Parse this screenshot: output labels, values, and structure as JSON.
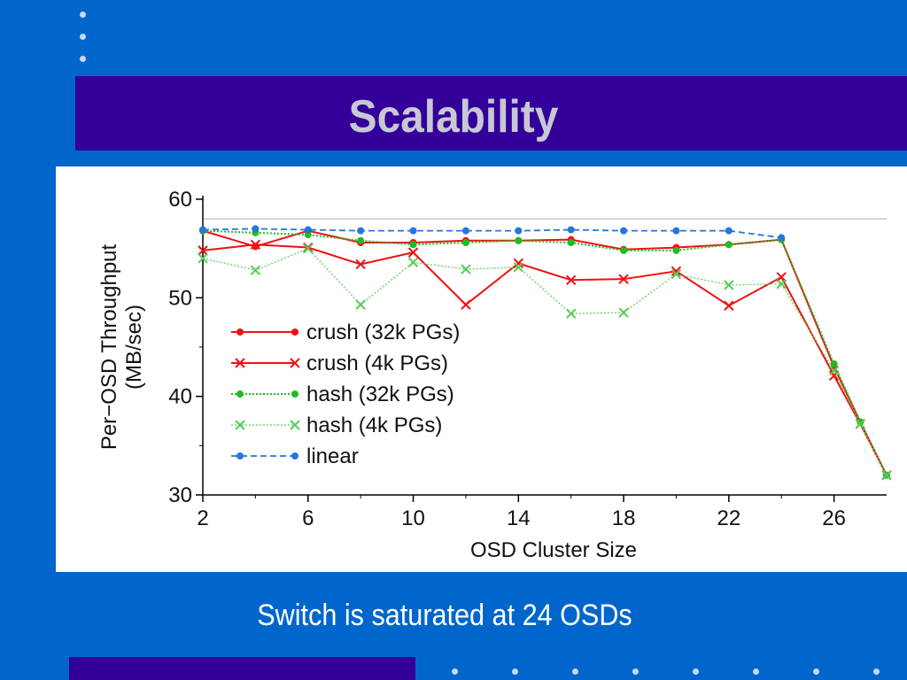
{
  "slide": {
    "title": "Scalability",
    "caption": "Switch is saturated at 24 OSDs"
  },
  "colors": {
    "background": "#0066cc",
    "band": "#330099",
    "title_text": "#c8c8d4",
    "caption_text": "#ffffff",
    "chart_panel": "#ffffff"
  },
  "chart_data": {
    "type": "line",
    "title": "",
    "xlabel": "OSD Cluster Size",
    "ylabel": "Per-OSD Throughput (MB/sec)",
    "ylabel_lines": [
      "Per−OSD Throughput",
      "(MB/sec)"
    ],
    "xlim": [
      2,
      28
    ],
    "ylim": [
      30,
      60
    ],
    "x_ticks": [
      2,
      6,
      10,
      14,
      18,
      22,
      26
    ],
    "y_ticks": [
      30,
      40,
      50,
      60
    ],
    "grid": false,
    "legend_position": "left-center",
    "reference_line": {
      "y": 58
    },
    "series": [
      {
        "name": "crush (32k PGs)",
        "color": "#ee1111",
        "dash": "",
        "marker": "dot",
        "width": 2,
        "x": [
          2,
          4,
          6,
          8,
          10,
          12,
          14,
          16,
          18,
          20,
          22,
          24,
          26,
          27,
          28
        ],
        "y": [
          56.8,
          55.2,
          56.8,
          55.6,
          55.6,
          55.8,
          55.8,
          55.9,
          54.9,
          55.1,
          55.4,
          55.9,
          43,
          37.4,
          32
        ]
      },
      {
        "name": "crush (4k PGs)",
        "color": "#ee1111",
        "dash": "",
        "marker": "x",
        "width": 2,
        "x": [
          2,
          4,
          6,
          8,
          10,
          12,
          14,
          16,
          18,
          20,
          22,
          24,
          26,
          27,
          28
        ],
        "y": [
          54.8,
          55.4,
          55.1,
          53.4,
          54.6,
          49.3,
          53.5,
          51.8,
          51.9,
          52.7,
          49.2,
          52.1,
          42.1,
          37.2,
          32
        ]
      },
      {
        "name": "hash (32k PGs)",
        "color": "#22bb22",
        "dash": "2,2",
        "marker": "dot",
        "width": 2,
        "x": [
          2,
          4,
          6,
          8,
          10,
          12,
          14,
          16,
          18,
          20,
          22,
          24,
          26,
          27,
          28
        ],
        "y": [
          56.8,
          56.6,
          56.4,
          55.8,
          55.4,
          55.6,
          55.8,
          55.6,
          54.8,
          54.8,
          55.4,
          55.9,
          43.3,
          37.4,
          32
        ]
      },
      {
        "name": "hash (4k PGs)",
        "color": "#55cc55",
        "dash": "2,2",
        "marker": "x",
        "width": 1.2,
        "x": [
          2,
          4,
          6,
          8,
          10,
          12,
          14,
          16,
          18,
          20,
          22,
          24,
          26,
          27,
          28
        ],
        "y": [
          54,
          52.8,
          55,
          49.3,
          53.6,
          52.9,
          53.1,
          48.4,
          48.5,
          52.4,
          51.3,
          51.4,
          42.6,
          37.2,
          32
        ]
      },
      {
        "name": "linear",
        "color": "#2277dd",
        "dash": "7,4",
        "marker": "dot",
        "width": 1.8,
        "x": [
          2,
          4,
          6,
          8,
          10,
          12,
          14,
          16,
          18,
          20,
          22,
          24
        ],
        "y": [
          56.9,
          57,
          56.9,
          56.8,
          56.8,
          56.8,
          56.8,
          56.9,
          56.8,
          56.8,
          56.8,
          56.1
        ]
      }
    ]
  }
}
